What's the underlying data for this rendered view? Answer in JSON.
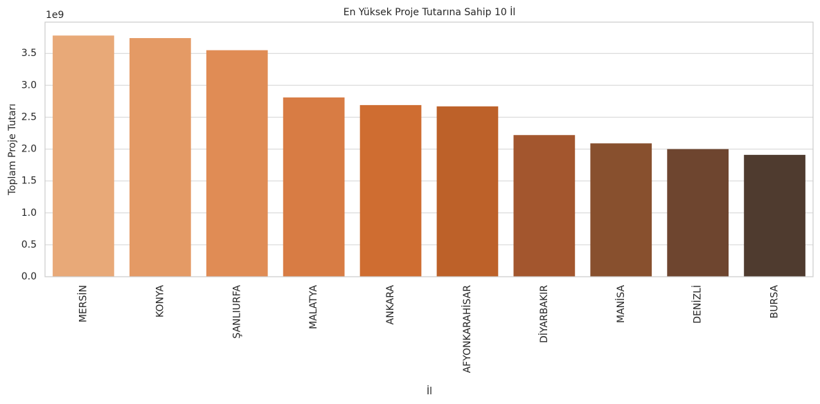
{
  "chart_data": {
    "type": "bar",
    "title": "En Yüksek Proje Tutarına Sahip 10 İl",
    "x_label": "İl",
    "y_label": "Toplam Proje Tutarı",
    "y_offset_label": "1e9",
    "categories": [
      "MERSİN",
      "KONYA",
      "ŞANLIURFA",
      "MALATYA",
      "ANKARA",
      "AFYONKARAHİSAR",
      "DİYARBAKIR",
      "MANİSA",
      "DENİZLİ",
      "BURSA"
    ],
    "values": [
      3.78,
      3.74,
      3.55,
      2.81,
      2.69,
      2.67,
      2.22,
      2.09,
      2.0,
      1.91
    ],
    "colors": [
      "#e8a978",
      "#e49a65",
      "#e08c55",
      "#d87c44",
      "#cf6d31",
      "#bd6129",
      "#a3562e",
      "#88502e",
      "#6e452f",
      "#4f3b2f"
    ],
    "ylim": [
      0,
      3.99
    ],
    "yticks": [
      {
        "value": 0,
        "label": "0.0"
      },
      {
        "value": 0.5,
        "label": "0.5"
      },
      {
        "value": 1,
        "label": "1.0"
      },
      {
        "value": 1.5,
        "label": "1.5"
      },
      {
        "value": 2,
        "label": "2.0"
      },
      {
        "value": 2.5,
        "label": "2.5"
      },
      {
        "value": 3,
        "label": "3.0"
      },
      {
        "value": 3.5,
        "label": "3.5"
      }
    ],
    "grid": true
  }
}
